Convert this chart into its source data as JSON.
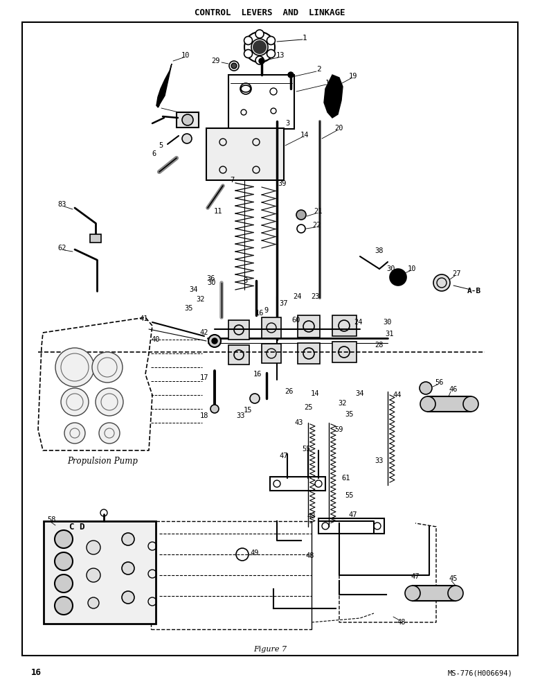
{
  "title": "CONTROL  LEVERS  AND  LINKAGE",
  "figure_label": "Figure 7",
  "page_number": "16",
  "part_number": "MS-776(H006694)",
  "bg_color": "#ffffff",
  "border_color": "#000000",
  "text_color": "#000000",
  "propulsion_pump_label": "Propulsion Pump",
  "section_label": "A-B",
  "cd_label": "C D",
  "fig_width": 7.8,
  "fig_height": 10.0,
  "dpi": 100
}
